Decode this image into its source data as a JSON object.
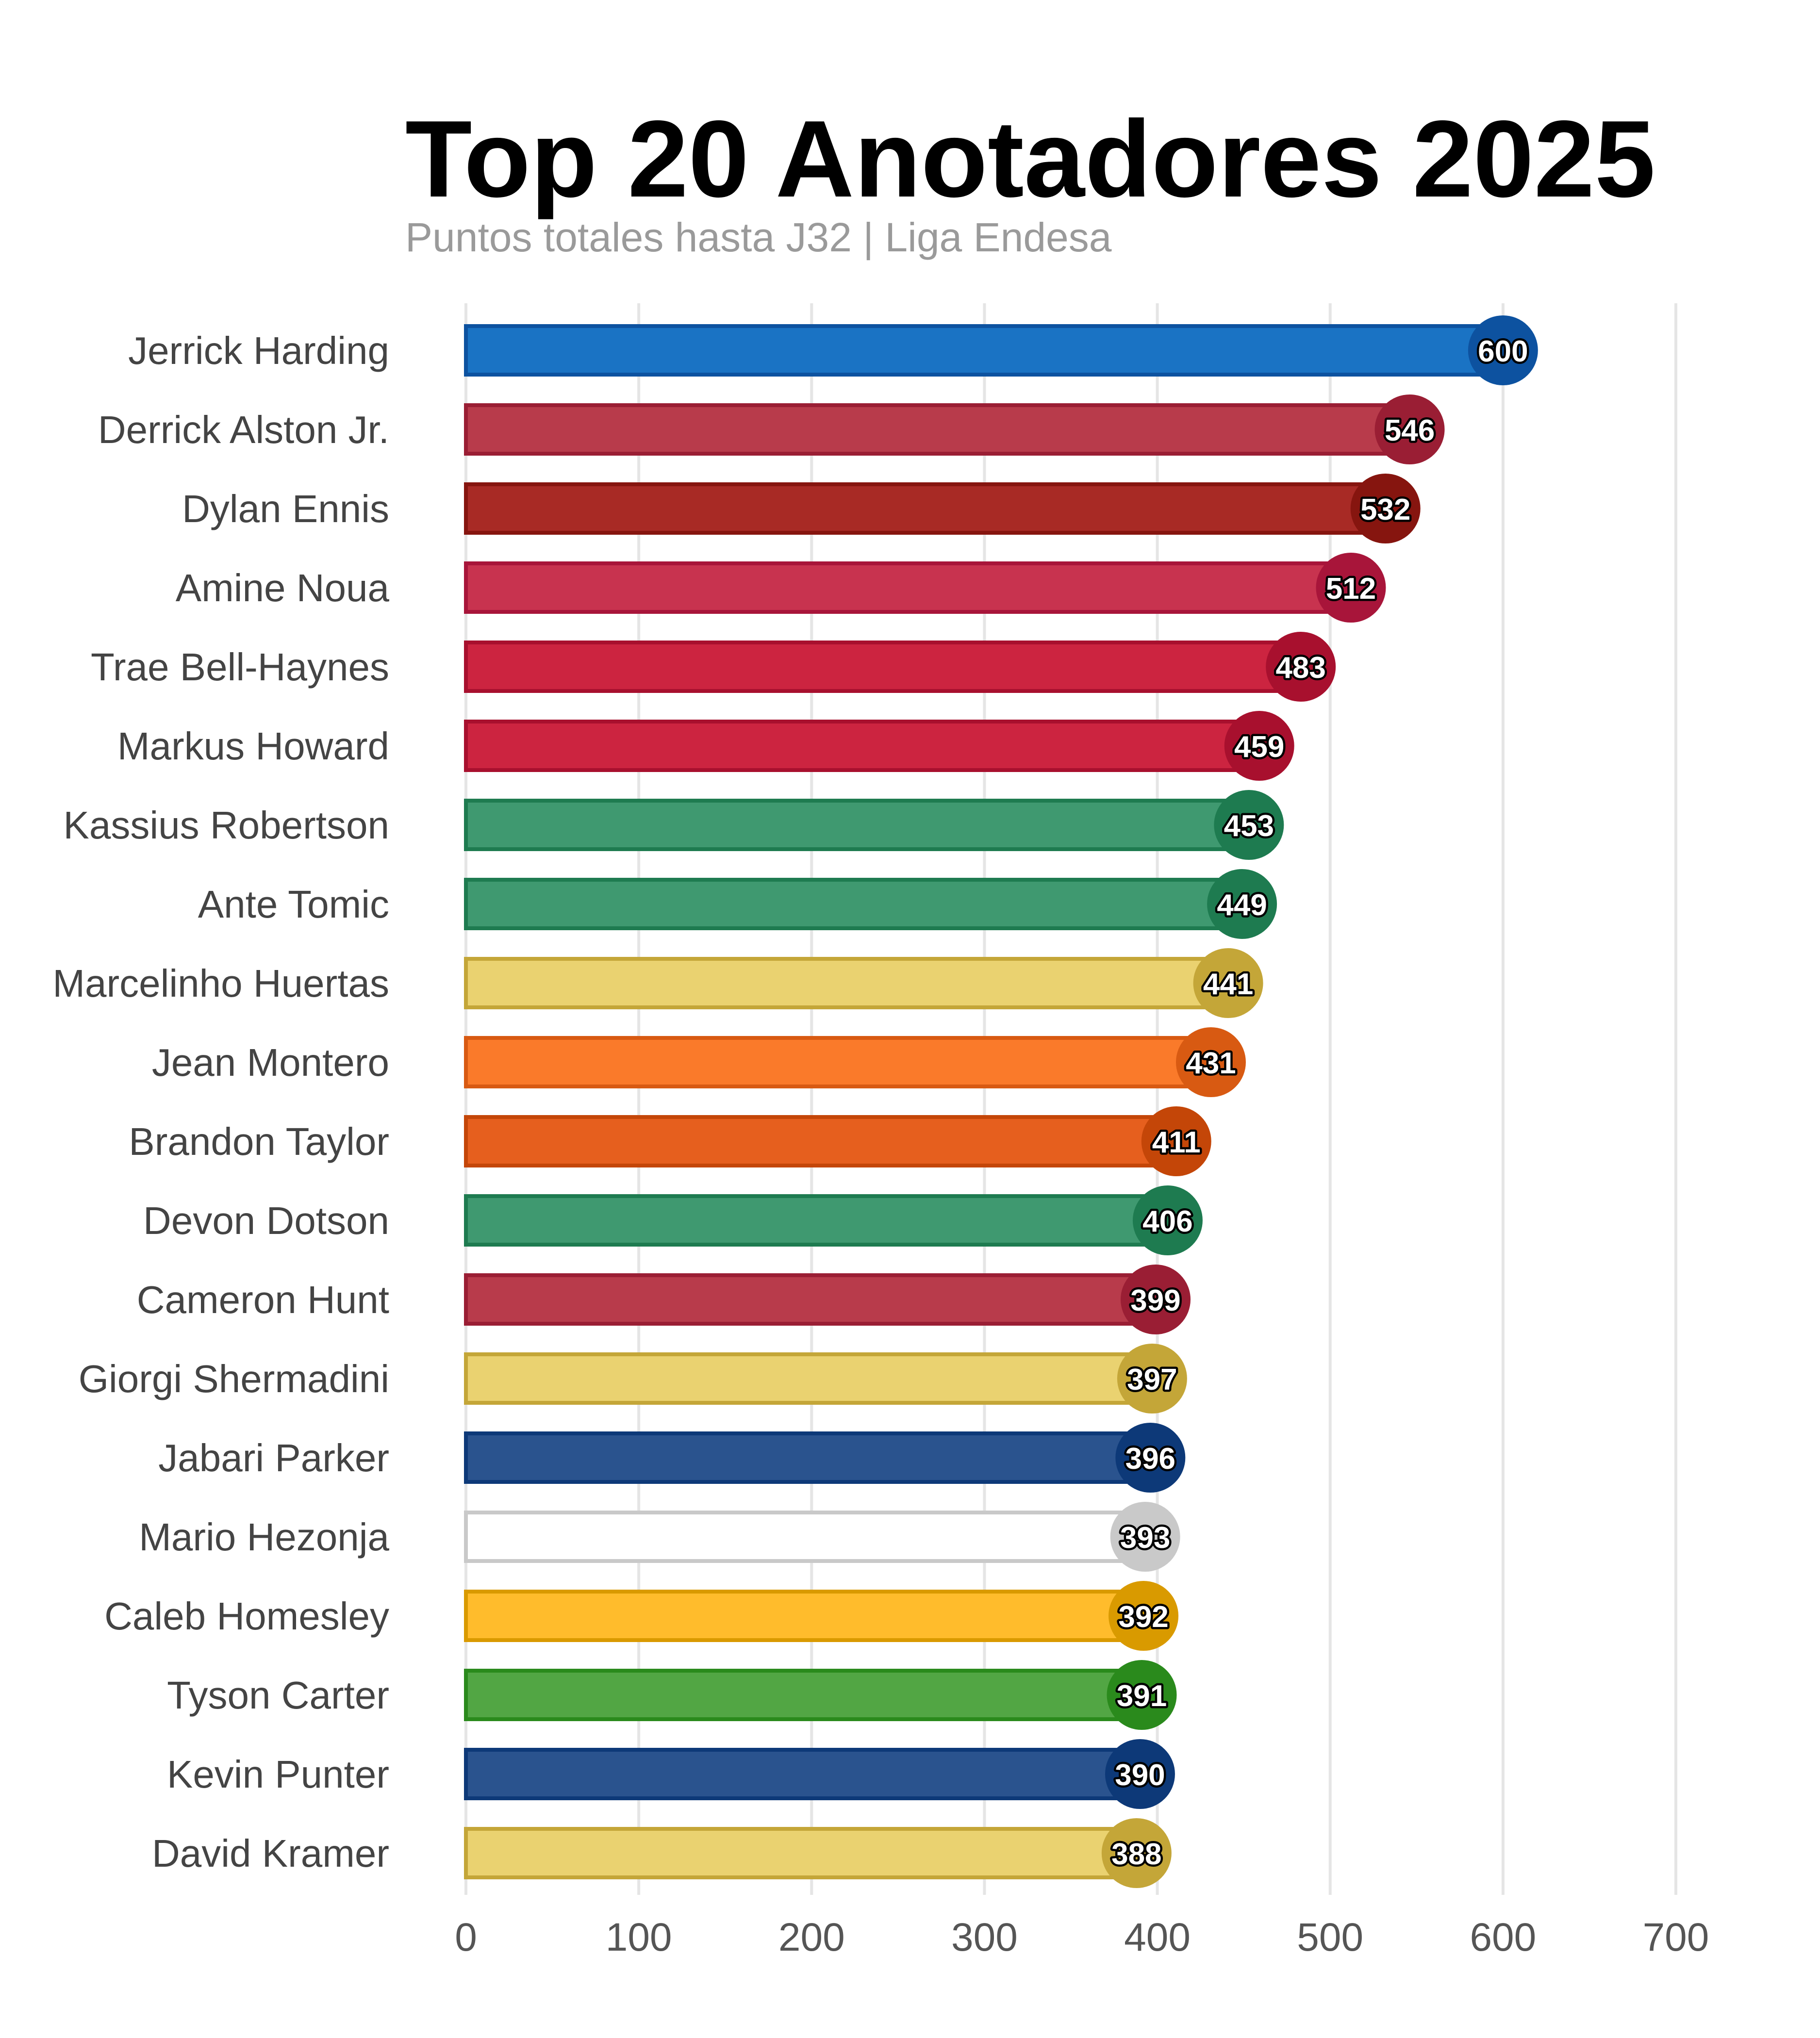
{
  "chart_data": {
    "type": "bar",
    "orientation": "horizontal",
    "title": "Top 20 Anotadores 2025",
    "subtitle": "Puntos totales hasta J32 | Liga Endesa",
    "xlabel": "",
    "ylabel": "",
    "xlim": [
      0,
      700
    ],
    "xticks": [
      0,
      100,
      200,
      300,
      400,
      500,
      600,
      700
    ],
    "xtick_labels": [
      "0",
      "100",
      "200",
      "300",
      "400",
      "500",
      "600",
      "700"
    ],
    "grid": "vertical",
    "categories": [
      "Jerrick Harding",
      "Derrick Alston Jr.",
      "Dylan Ennis",
      "Amine Noua",
      "Trae Bell-Haynes",
      "Markus Howard",
      "Kassius Robertson",
      "Ante Tomic",
      "Marcelinho Huertas",
      "Jean Montero",
      "Brandon Taylor",
      "Devon Dotson",
      "Cameron Hunt",
      "Giorgi Shermadini",
      "Jabari Parker",
      "Mario Hezonja",
      "Caleb Homesley",
      "Tyson Carter",
      "Kevin Punter",
      "David Kramer"
    ],
    "values": [
      600,
      546,
      532,
      512,
      483,
      459,
      453,
      449,
      441,
      431,
      411,
      406,
      399,
      397,
      396,
      393,
      392,
      391,
      390,
      388
    ],
    "value_labels": [
      "600",
      "546",
      "532",
      "512",
      "483",
      "459",
      "453",
      "449",
      "441",
      "431",
      "411",
      "406",
      "399",
      "397",
      "396",
      "393",
      "392",
      "391",
      "390",
      "388"
    ],
    "bar_colors": [
      "#1a73c4",
      "#b83b4b",
      "#a82a25",
      "#c8334f",
      "#cc2440",
      "#cc2440",
      "#3f9970",
      "#3f9970",
      "#ead270",
      "#fa7a2a",
      "#e65f1e",
      "#3f9970",
      "#b83b4b",
      "#ead270",
      "#2a538e",
      "#ffffff",
      "#ffbc2c",
      "#52a644",
      "#2a538e",
      "#ead270"
    ],
    "edge_colors": [
      "#0d52a0",
      "#9a1e34",
      "#86150f",
      "#a8153a",
      "#a8102e",
      "#a8102e",
      "#1e7b50",
      "#1e7b50",
      "#c4a638",
      "#d85a12",
      "#c44608",
      "#1e7b50",
      "#9a1e34",
      "#c4a638",
      "#0d3978",
      "#c9c9c9",
      "#d99a00",
      "#2a8a1c",
      "#0d3978",
      "#c4a638"
    ]
  }
}
